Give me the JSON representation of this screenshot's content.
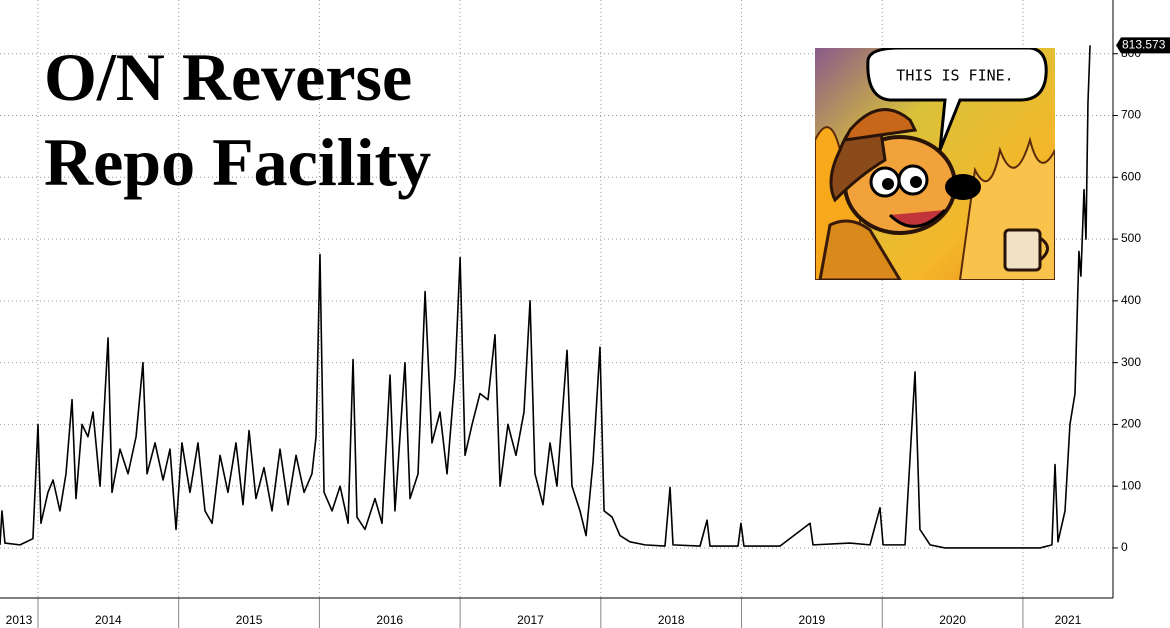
{
  "chart_data": {
    "type": "line",
    "title": [
      "O/N Reverse",
      "Repo Facility"
    ],
    "image_text": "THIS IS FINE.",
    "color": "#000000",
    "grid": true,
    "xlim": [
      2013.73,
      2021.64
    ],
    "xticks": [
      2014,
      2015,
      2016,
      2017,
      2018,
      2019,
      2020,
      2021
    ],
    "x_labels": [
      {
        "value": 2013.5,
        "label": "2013"
      },
      {
        "value": 2014.5,
        "label": "2014"
      },
      {
        "value": 2015.5,
        "label": "2015"
      },
      {
        "value": 2016.5,
        "label": "2016"
      },
      {
        "value": 2017.5,
        "label": "2017"
      },
      {
        "value": 2018.5,
        "label": "2018"
      },
      {
        "value": 2019.5,
        "label": "2019"
      },
      {
        "value": 2020.5,
        "label": "2020"
      },
      {
        "value": 2021.5,
        "label": "2021"
      }
    ],
    "ylim": [
      -81,
      887
    ],
    "yticks": [
      0,
      100,
      200,
      300,
      400,
      500,
      600,
      700,
      800
    ],
    "x": [
      2013.73,
      2013.744,
      2013.765,
      2013.872,
      2013.964,
      2014.0,
      2014.021,
      2014.071,
      2014.107,
      2014.156,
      2014.199,
      2014.242,
      2014.27,
      2014.313,
      2014.355,
      2014.391,
      2014.441,
      2014.498,
      2014.526,
      2014.583,
      2014.64,
      2014.697,
      2014.746,
      2014.775,
      2014.832,
      2014.889,
      2014.938,
      2014.981,
      2015.023,
      2015.08,
      2015.137,
      2015.187,
      2015.237,
      2015.294,
      2015.35,
      2015.407,
      2015.457,
      2015.5,
      2015.549,
      2015.606,
      2015.663,
      2015.72,
      2015.777,
      2015.834,
      2015.891,
      2015.947,
      2015.976,
      2016.004,
      2016.033,
      2016.09,
      2016.147,
      2016.204,
      2016.239,
      2016.267,
      2016.324,
      2016.395,
      2016.445,
      2016.502,
      2016.537,
      2016.608,
      2016.644,
      2016.701,
      2016.751,
      2016.8,
      2016.857,
      2016.907,
      2016.964,
      2017.0,
      2017.035,
      2017.085,
      2017.141,
      2017.198,
      2017.248,
      2017.284,
      2017.34,
      2017.397,
      2017.454,
      2017.497,
      2017.532,
      2017.589,
      2017.639,
      2017.688,
      2017.76,
      2017.795,
      2017.852,
      2017.895,
      2017.945,
      2017.994,
      2018.023,
      2018.08,
      2018.136,
      2018.207,
      2018.314,
      2018.456,
      2018.492,
      2018.513,
      2018.705,
      2018.755,
      2018.776,
      2018.975,
      2018.996,
      2019.017,
      2019.273,
      2019.487,
      2019.508,
      2019.771,
      2019.913,
      2019.984,
      2020.006,
      2020.162,
      2020.233,
      2020.268,
      2020.34,
      2020.446,
      2021.121,
      2021.206,
      2021.228,
      2021.249,
      2021.299,
      2021.334,
      2021.37,
      2021.398,
      2021.412,
      2021.434,
      2021.448,
      2021.462,
      2021.477
    ],
    "values": [
      5,
      60,
      8,
      5,
      15,
      200,
      40,
      90,
      110,
      60,
      120,
      240,
      80,
      200,
      180,
      220,
      100,
      340,
      90,
      160,
      120,
      180,
      300,
      120,
      170,
      110,
      160,
      30,
      170,
      90,
      170,
      60,
      40,
      150,
      90,
      170,
      70,
      190,
      80,
      130,
      60,
      160,
      70,
      150,
      90,
      120,
      180,
      475,
      90,
      60,
      100,
      40,
      305,
      50,
      30,
      80,
      40,
      280,
      60,
      300,
      80,
      120,
      415,
      170,
      220,
      120,
      280,
      470,
      150,
      200,
      250,
      240,
      345,
      100,
      200,
      150,
      220,
      400,
      120,
      70,
      170,
      100,
      320,
      100,
      60,
      20,
      140,
      325,
      60,
      50,
      20,
      10,
      5,
      3,
      98,
      5,
      3,
      45,
      3,
      3,
      40,
      3,
      3,
      40,
      5,
      8,
      5,
      65,
      5,
      5,
      285,
      30,
      5,
      0,
      0,
      5,
      135,
      10,
      60,
      200,
      250,
      480,
      440,
      580,
      500,
      720,
      813.573
    ]
  }
}
